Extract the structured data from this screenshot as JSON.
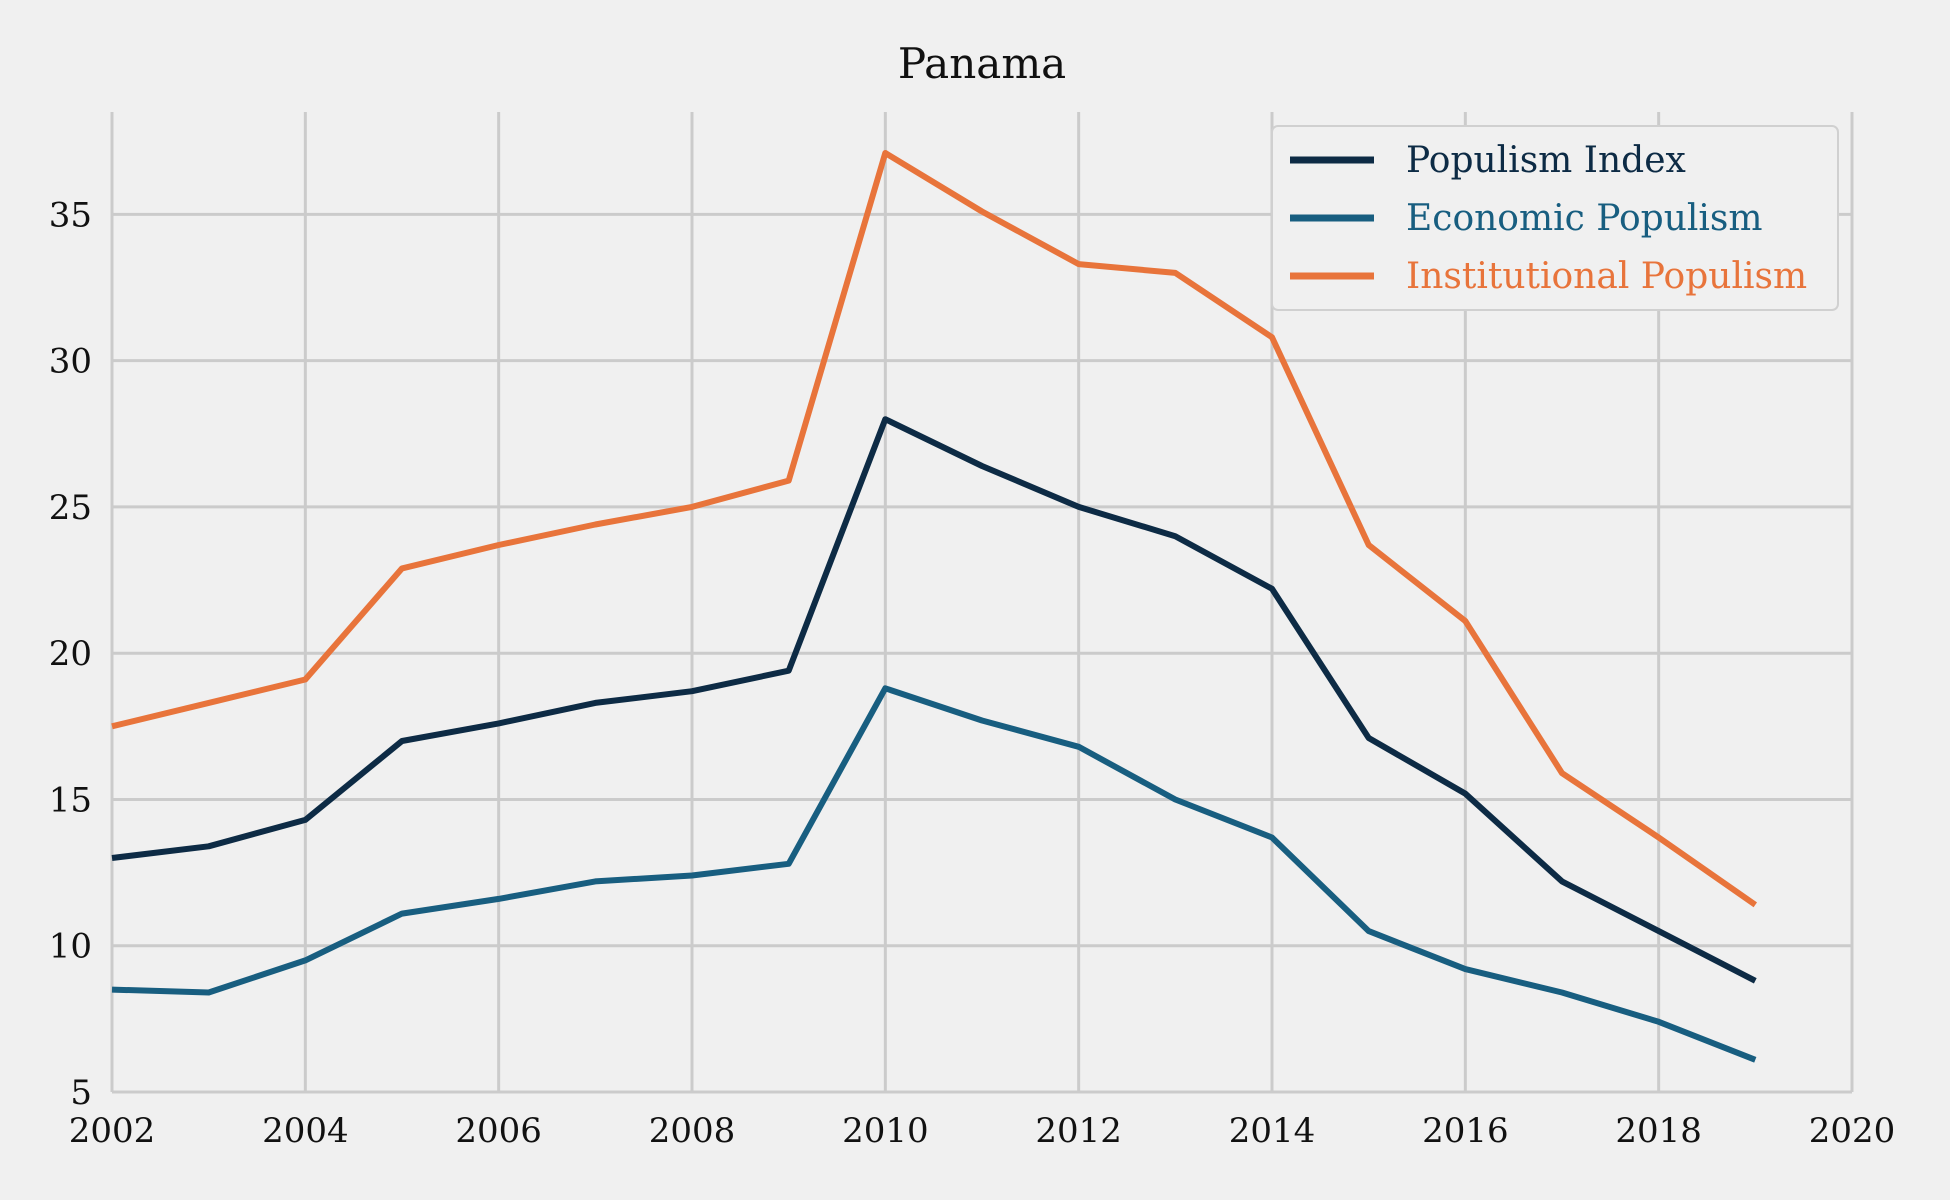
{
  "chart_data": {
    "type": "line",
    "title": "Panama",
    "xlabel": "",
    "ylabel": "",
    "xlim": [
      2002,
      2020
    ],
    "ylim": [
      5,
      38.5
    ],
    "x_ticks": [
      2002,
      2004,
      2006,
      2008,
      2010,
      2012,
      2014,
      2016,
      2018,
      2020
    ],
    "y_ticks": [
      5,
      10,
      15,
      20,
      25,
      30,
      35
    ],
    "x_tick_labels": [
      "2002",
      "2004",
      "2006",
      "2008",
      "2010",
      "2012",
      "2014",
      "2016",
      "2018",
      "2020"
    ],
    "y_tick_labels": [
      "5",
      "10",
      "15",
      "20",
      "25",
      "30",
      "35"
    ],
    "grid": true,
    "legend_position": "top-right",
    "x": [
      2002,
      2003,
      2004,
      2005,
      2006,
      2007,
      2008,
      2009,
      2010,
      2011,
      2012,
      2013,
      2014,
      2015,
      2016,
      2017,
      2018,
      2019
    ],
    "series": [
      {
        "name": "Populism Index",
        "color": "#0d2b45",
        "values": [
          13.0,
          13.4,
          14.3,
          17.0,
          17.6,
          18.3,
          18.7,
          19.4,
          28.0,
          26.4,
          25.0,
          24.0,
          22.2,
          17.1,
          15.2,
          12.2,
          10.5,
          8.8
        ]
      },
      {
        "name": "Economic Populism",
        "color": "#185e80",
        "values": [
          8.5,
          8.4,
          9.5,
          11.1,
          11.6,
          12.2,
          12.4,
          12.8,
          18.8,
          17.7,
          16.8,
          15.0,
          13.7,
          10.5,
          9.2,
          8.4,
          7.4,
          6.1
        ]
      },
      {
        "name": "Institutional Populism",
        "color": "#e8743b",
        "values": [
          17.5,
          18.3,
          19.1,
          22.9,
          23.7,
          24.4,
          25.0,
          25.9,
          37.1,
          35.1,
          33.3,
          33.0,
          30.8,
          23.7,
          21.1,
          15.9,
          13.7,
          11.4
        ]
      }
    ]
  }
}
